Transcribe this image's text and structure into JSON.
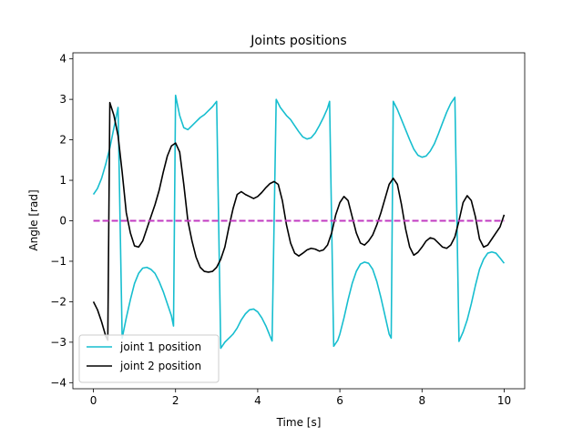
{
  "chart_data": {
    "type": "line",
    "title": "Joints positions",
    "xlabel": "Time [s]",
    "ylabel": "Angle [rad]",
    "xlim": [
      -0.5,
      10.5
    ],
    "ylim": [
      -4.15,
      4.15
    ],
    "xticks": [
      0,
      2,
      4,
      6,
      8,
      10
    ],
    "yticks": [
      -4,
      -3,
      -2,
      -1,
      0,
      1,
      2,
      3,
      4
    ],
    "grid": false,
    "legend_position": "lower-left",
    "series": [
      {
        "name": "joint 1 position",
        "color": "#17becf",
        "style": "solid",
        "points": [
          [
            0.0,
            0.65
          ],
          [
            0.1,
            0.8
          ],
          [
            0.2,
            1.05
          ],
          [
            0.3,
            1.4
          ],
          [
            0.4,
            1.8
          ],
          [
            0.5,
            2.3
          ],
          [
            0.6,
            2.8
          ],
          [
            0.7,
            -2.9
          ],
          [
            0.8,
            -2.4
          ],
          [
            0.9,
            -1.95
          ],
          [
            1.0,
            -1.55
          ],
          [
            1.1,
            -1.3
          ],
          [
            1.2,
            -1.17
          ],
          [
            1.3,
            -1.15
          ],
          [
            1.4,
            -1.2
          ],
          [
            1.5,
            -1.3
          ],
          [
            1.6,
            -1.5
          ],
          [
            1.7,
            -1.75
          ],
          [
            1.8,
            -2.05
          ],
          [
            1.9,
            -2.35
          ],
          [
            1.95,
            -2.6
          ],
          [
            2.0,
            3.1
          ],
          [
            2.1,
            2.6
          ],
          [
            2.2,
            2.3
          ],
          [
            2.3,
            2.25
          ],
          [
            2.4,
            2.35
          ],
          [
            2.5,
            2.45
          ],
          [
            2.6,
            2.55
          ],
          [
            2.7,
            2.62
          ],
          [
            2.8,
            2.72
          ],
          [
            2.9,
            2.82
          ],
          [
            3.0,
            2.95
          ],
          [
            3.1,
            -3.15
          ],
          [
            3.2,
            -3.0
          ],
          [
            3.3,
            -2.9
          ],
          [
            3.4,
            -2.8
          ],
          [
            3.5,
            -2.65
          ],
          [
            3.6,
            -2.45
          ],
          [
            3.7,
            -2.3
          ],
          [
            3.8,
            -2.2
          ],
          [
            3.9,
            -2.18
          ],
          [
            4.0,
            -2.25
          ],
          [
            4.1,
            -2.4
          ],
          [
            4.2,
            -2.6
          ],
          [
            4.3,
            -2.85
          ],
          [
            4.35,
            -2.97
          ],
          [
            4.45,
            3.0
          ],
          [
            4.55,
            2.8
          ],
          [
            4.7,
            2.6
          ],
          [
            4.8,
            2.5
          ],
          [
            4.9,
            2.35
          ],
          [
            5.0,
            2.2
          ],
          [
            5.1,
            2.07
          ],
          [
            5.2,
            2.02
          ],
          [
            5.3,
            2.05
          ],
          [
            5.4,
            2.17
          ],
          [
            5.5,
            2.35
          ],
          [
            5.6,
            2.55
          ],
          [
            5.7,
            2.78
          ],
          [
            5.75,
            2.95
          ],
          [
            5.85,
            -3.1
          ],
          [
            5.95,
            -2.95
          ],
          [
            6.0,
            -2.8
          ],
          [
            6.1,
            -2.4
          ],
          [
            6.2,
            -1.95
          ],
          [
            6.3,
            -1.55
          ],
          [
            6.4,
            -1.25
          ],
          [
            6.5,
            -1.07
          ],
          [
            6.6,
            -1.02
          ],
          [
            6.7,
            -1.05
          ],
          [
            6.8,
            -1.2
          ],
          [
            6.9,
            -1.5
          ],
          [
            7.0,
            -1.9
          ],
          [
            7.1,
            -2.35
          ],
          [
            7.2,
            -2.8
          ],
          [
            7.25,
            -2.9
          ],
          [
            7.3,
            2.95
          ],
          [
            7.4,
            2.75
          ],
          [
            7.5,
            2.5
          ],
          [
            7.6,
            2.25
          ],
          [
            7.7,
            2.0
          ],
          [
            7.8,
            1.77
          ],
          [
            7.9,
            1.62
          ],
          [
            8.0,
            1.57
          ],
          [
            8.1,
            1.6
          ],
          [
            8.2,
            1.72
          ],
          [
            8.3,
            1.9
          ],
          [
            8.4,
            2.15
          ],
          [
            8.5,
            2.42
          ],
          [
            8.6,
            2.68
          ],
          [
            8.7,
            2.9
          ],
          [
            8.8,
            3.05
          ],
          [
            8.9,
            -2.98
          ],
          [
            9.0,
            -2.75
          ],
          [
            9.1,
            -2.45
          ],
          [
            9.2,
            -2.05
          ],
          [
            9.3,
            -1.6
          ],
          [
            9.4,
            -1.2
          ],
          [
            9.5,
            -0.95
          ],
          [
            9.6,
            -0.8
          ],
          [
            9.7,
            -0.77
          ],
          [
            9.8,
            -0.8
          ],
          [
            9.9,
            -0.92
          ],
          [
            10.0,
            -1.05
          ]
        ]
      },
      {
        "name": "joint 2 position",
        "color": "#000000",
        "style": "solid",
        "points": [
          [
            0.0,
            -2.0
          ],
          [
            0.1,
            -2.2
          ],
          [
            0.2,
            -2.5
          ],
          [
            0.3,
            -2.85
          ],
          [
            0.35,
            -2.95
          ],
          [
            0.4,
            2.92
          ],
          [
            0.5,
            2.6
          ],
          [
            0.6,
            2.1
          ],
          [
            0.7,
            1.2
          ],
          [
            0.8,
            0.2
          ],
          [
            0.9,
            -0.3
          ],
          [
            1.0,
            -0.62
          ],
          [
            1.1,
            -0.65
          ],
          [
            1.2,
            -0.5
          ],
          [
            1.3,
            -0.2
          ],
          [
            1.4,
            0.1
          ],
          [
            1.5,
            0.4
          ],
          [
            1.6,
            0.75
          ],
          [
            1.7,
            1.2
          ],
          [
            1.8,
            1.6
          ],
          [
            1.9,
            1.85
          ],
          [
            2.0,
            1.92
          ],
          [
            2.1,
            1.7
          ],
          [
            2.2,
            0.9
          ],
          [
            2.3,
            0.0
          ],
          [
            2.4,
            -0.5
          ],
          [
            2.5,
            -0.9
          ],
          [
            2.6,
            -1.15
          ],
          [
            2.7,
            -1.25
          ],
          [
            2.8,
            -1.27
          ],
          [
            2.9,
            -1.25
          ],
          [
            3.0,
            -1.15
          ],
          [
            3.1,
            -0.95
          ],
          [
            3.2,
            -0.65
          ],
          [
            3.3,
            -0.15
          ],
          [
            3.4,
            0.3
          ],
          [
            3.5,
            0.65
          ],
          [
            3.6,
            0.72
          ],
          [
            3.7,
            0.65
          ],
          [
            3.8,
            0.6
          ],
          [
            3.9,
            0.55
          ],
          [
            4.0,
            0.6
          ],
          [
            4.1,
            0.7
          ],
          [
            4.2,
            0.82
          ],
          [
            4.3,
            0.92
          ],
          [
            4.4,
            0.97
          ],
          [
            4.5,
            0.9
          ],
          [
            4.6,
            0.5
          ],
          [
            4.7,
            -0.1
          ],
          [
            4.8,
            -0.55
          ],
          [
            4.9,
            -0.8
          ],
          [
            5.0,
            -0.87
          ],
          [
            5.1,
            -0.8
          ],
          [
            5.2,
            -0.72
          ],
          [
            5.3,
            -0.68
          ],
          [
            5.4,
            -0.7
          ],
          [
            5.5,
            -0.75
          ],
          [
            5.6,
            -0.72
          ],
          [
            5.7,
            -0.6
          ],
          [
            5.8,
            -0.3
          ],
          [
            5.9,
            0.15
          ],
          [
            6.0,
            0.45
          ],
          [
            6.1,
            0.6
          ],
          [
            6.2,
            0.5
          ],
          [
            6.3,
            0.1
          ],
          [
            6.4,
            -0.3
          ],
          [
            6.5,
            -0.55
          ],
          [
            6.6,
            -0.6
          ],
          [
            6.7,
            -0.5
          ],
          [
            6.8,
            -0.35
          ],
          [
            6.9,
            -0.1
          ],
          [
            7.0,
            0.2
          ],
          [
            7.1,
            0.55
          ],
          [
            7.2,
            0.9
          ],
          [
            7.3,
            1.05
          ],
          [
            7.4,
            0.9
          ],
          [
            7.5,
            0.4
          ],
          [
            7.6,
            -0.2
          ],
          [
            7.7,
            -0.65
          ],
          [
            7.8,
            -0.85
          ],
          [
            7.9,
            -0.78
          ],
          [
            8.0,
            -0.65
          ],
          [
            8.1,
            -0.5
          ],
          [
            8.2,
            -0.42
          ],
          [
            8.3,
            -0.45
          ],
          [
            8.4,
            -0.55
          ],
          [
            8.5,
            -0.65
          ],
          [
            8.6,
            -0.68
          ],
          [
            8.7,
            -0.6
          ],
          [
            8.8,
            -0.4
          ],
          [
            8.9,
            0.0
          ],
          [
            9.0,
            0.45
          ],
          [
            9.1,
            0.62
          ],
          [
            9.2,
            0.5
          ],
          [
            9.3,
            0.1
          ],
          [
            9.4,
            -0.45
          ],
          [
            9.5,
            -0.65
          ],
          [
            9.6,
            -0.6
          ],
          [
            9.7,
            -0.45
          ],
          [
            9.8,
            -0.3
          ],
          [
            9.9,
            -0.15
          ],
          [
            10.0,
            0.15
          ]
        ]
      },
      {
        "color": "#c23bc2",
        "style": "dashed",
        "points": [
          [
            0.0,
            0.0
          ],
          [
            10.0,
            0.0
          ]
        ]
      }
    ]
  }
}
